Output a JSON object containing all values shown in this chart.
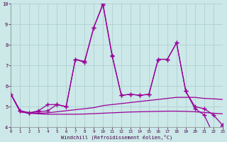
{
  "background_color": "#cce8e8",
  "grid_color": "#aacccc",
  "line_color": "#990099",
  "x_values": [
    0,
    1,
    2,
    3,
    4,
    5,
    6,
    7,
    8,
    9,
    10,
    11,
    12,
    13,
    14,
    15,
    16,
    17,
    18,
    19,
    20,
    21,
    22,
    23
  ],
  "series1": [
    5.6,
    4.8,
    4.7,
    4.8,
    5.1,
    5.1,
    5.0,
    7.3,
    7.2,
    8.85,
    10.0,
    7.5,
    5.55,
    5.6,
    5.55,
    5.6,
    7.3,
    7.3,
    8.1,
    5.75,
    4.9,
    4.6,
    3.65,
    4.1
  ],
  "series2": [
    5.6,
    4.8,
    4.7,
    4.75,
    4.8,
    5.1,
    5.0,
    7.3,
    7.15,
    8.85,
    9.95,
    7.45,
    5.55,
    5.6,
    5.55,
    5.6,
    7.3,
    7.3,
    8.1,
    5.75,
    5.0,
    4.9,
    4.6,
    4.1
  ],
  "series3": [
    5.6,
    4.75,
    4.68,
    4.68,
    4.7,
    4.75,
    4.8,
    4.85,
    4.9,
    4.95,
    5.05,
    5.1,
    5.15,
    5.2,
    5.25,
    5.3,
    5.35,
    5.4,
    5.45,
    5.45,
    5.45,
    5.4,
    5.38,
    5.35
  ],
  "series4": [
    5.6,
    4.75,
    4.68,
    4.65,
    4.63,
    4.63,
    4.63,
    4.63,
    4.64,
    4.66,
    4.68,
    4.7,
    4.72,
    4.74,
    4.75,
    4.76,
    4.77,
    4.78,
    4.78,
    4.77,
    4.75,
    4.72,
    4.68,
    4.65
  ],
  "xlim": [
    0,
    23
  ],
  "ylim": [
    4,
    10
  ],
  "yticks": [
    4,
    5,
    6,
    7,
    8,
    9,
    10
  ],
  "xticks": [
    0,
    1,
    2,
    3,
    4,
    5,
    6,
    7,
    8,
    9,
    10,
    11,
    12,
    13,
    14,
    15,
    16,
    17,
    18,
    19,
    20,
    21,
    22,
    23
  ],
  "xlabel": "Windchill (Refroidissement éolien,°C)"
}
